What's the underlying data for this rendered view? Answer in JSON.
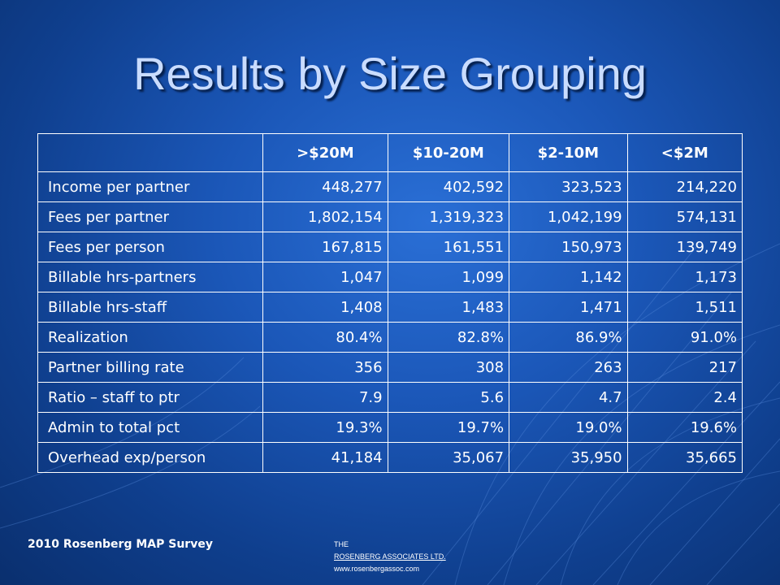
{
  "slide": {
    "title": "Results by Size Grouping"
  },
  "table": {
    "headers": [
      "",
      ">$20M",
      "$10-20M",
      "$2-10M",
      "<$2M"
    ],
    "rows": [
      {
        "label": "Income per partner",
        "values": [
          "448,277",
          "402,592",
          "323,523",
          "214,220"
        ]
      },
      {
        "label": "Fees per partner",
        "values": [
          "1,802,154",
          "1,319,323",
          "1,042,199",
          "574,131"
        ]
      },
      {
        "label": "Fees per person",
        "values": [
          "167,815",
          "161,551",
          "150,973",
          "139,749"
        ]
      },
      {
        "label": "Billable hrs-partners",
        "values": [
          "1,047",
          "1,099",
          "1,142",
          "1,173"
        ]
      },
      {
        "label": "Billable hrs-staff",
        "values": [
          "1,408",
          "1,483",
          "1,471",
          "1,511"
        ]
      },
      {
        "label": "Realization",
        "values": [
          "80.4%",
          "82.8%",
          "86.9%",
          "91.0%"
        ]
      },
      {
        "label": "Partner billing rate",
        "values": [
          "356",
          "308",
          "263",
          "217"
        ]
      },
      {
        "label": "Ratio – staff to ptr",
        "values": [
          "7.9",
          "5.6",
          "4.7",
          "2.4"
        ]
      },
      {
        "label": "Admin to total pct",
        "values": [
          "19.3%",
          "19.7%",
          "19.0%",
          "19.6%"
        ]
      },
      {
        "label": "Overhead exp/person",
        "values": [
          "41,184",
          "35,067",
          "35,950",
          "35,665"
        ]
      }
    ]
  },
  "footer": {
    "survey": "2010 Rosenberg MAP Survey",
    "the": "THE",
    "firm": "ROSENBERG ASSOCIATES LTD.",
    "url": "www.rosenbergassoc.com"
  },
  "colors": {
    "background": "#1b57b8",
    "title": "#c9dcff"
  }
}
